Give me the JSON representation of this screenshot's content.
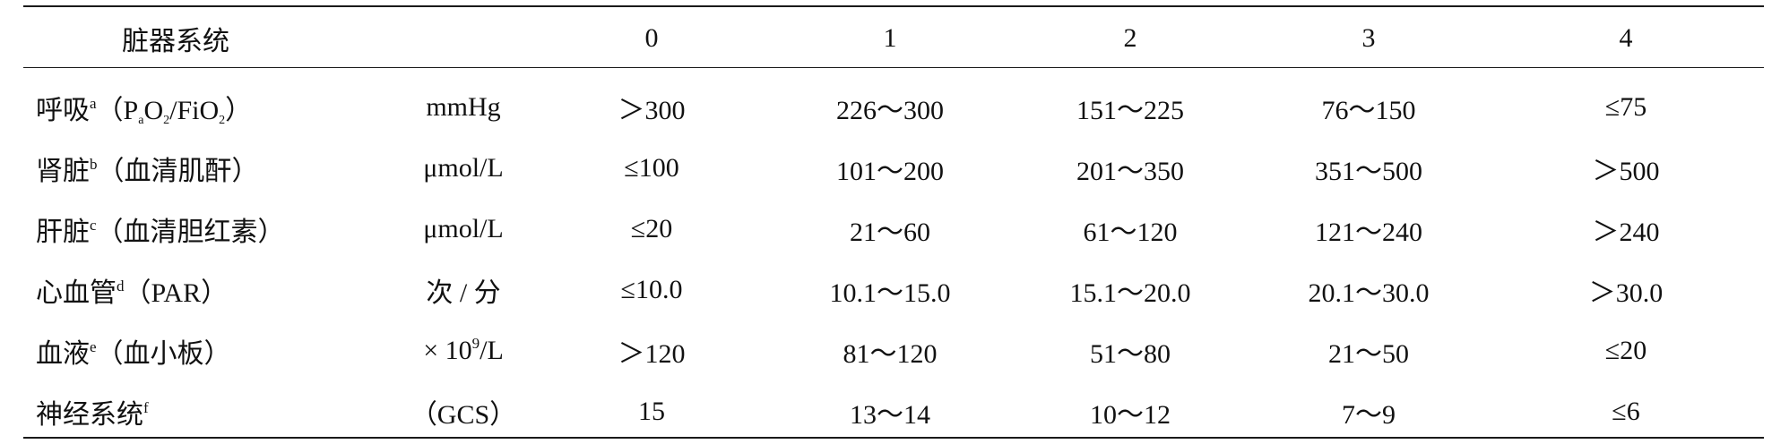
{
  "table": {
    "headers": [
      "脏器系统",
      "",
      "0",
      "1",
      "2",
      "3",
      "4"
    ],
    "rows": [
      {
        "organ": {
          "name": "呼吸",
          "note": "a",
          "paren": "（P",
          "pa_sub": "a",
          "o2": "O",
          "o2_sub": "2",
          "mid": "/FiO",
          "fio2_sub": "2",
          "close": "）"
        },
        "unit": "mmHg",
        "values": [
          "＞300",
          "226～300",
          "151～225",
          "76～150",
          "≤75"
        ]
      },
      {
        "organ": {
          "name": "肾脏",
          "note": "b",
          "desc": "（血清肌酐）"
        },
        "unit": "μmol/L",
        "values": [
          "≤100",
          "101～200",
          "201～350",
          "351～500",
          "＞500"
        ]
      },
      {
        "organ": {
          "name": "肝脏",
          "note": "c",
          "desc": "（血清胆红素）"
        },
        "unit": "μmol/L",
        "values": [
          "≤20",
          "21～60",
          "61～120",
          "121～240",
          "＞240"
        ]
      },
      {
        "organ": {
          "name": "心血管",
          "note": "d",
          "desc": "（PAR）"
        },
        "unit": "次 / 分",
        "values": [
          "≤10.0",
          "10.1～15.0",
          "15.1～20.0",
          "20.1～30.0",
          "＞30.0"
        ]
      },
      {
        "organ": {
          "name": "血液",
          "note": "e",
          "desc": "（血小板）"
        },
        "unit_pre": "× 10",
        "unit_sup": "9",
        "unit_post": "/L",
        "values": [
          "＞120",
          "81～120",
          "51～80",
          "21～50",
          "≤20"
        ]
      },
      {
        "organ": {
          "name": "神经系统",
          "note": "f",
          "desc": ""
        },
        "unit": "（GCS）",
        "values": [
          "15",
          "13～14",
          "10～12",
          "7～9",
          "≤6"
        ]
      }
    ]
  }
}
